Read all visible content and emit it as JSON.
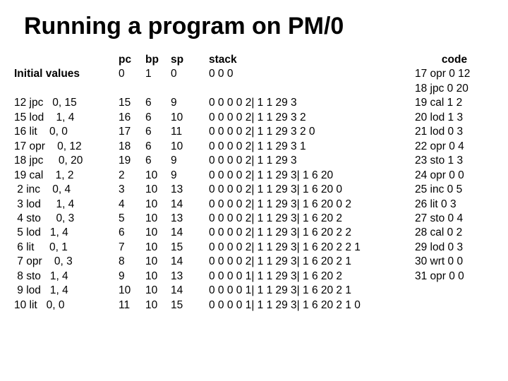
{
  "title": "Running a program on PM/0",
  "headers": {
    "initial": "Initial values",
    "pc": "pc",
    "bp": "bp",
    "sp": "sp",
    "stack": "stack",
    "code": "code"
  },
  "initial": {
    "pc": "0",
    "bp": "1",
    "sp": "0",
    "stack": "0 0 0"
  },
  "trace": [
    {
      "instr": "12 jpc   0, 15",
      "pc": "15",
      "bp": "6",
      "sp": "9",
      "stack": "0 0 0 0 2| 1 1 29 3"
    },
    {
      "instr": "15 lod    1, 4",
      "pc": "16",
      "bp": "6",
      "sp": "10",
      "stack": "0 0 0 0 2| 1 1 29 3 2"
    },
    {
      "instr": "16 lit    0, 0",
      "pc": "17",
      "bp": "6",
      "sp": "11",
      "stack": "0 0 0 0 2| 1 1 29 3 2 0"
    },
    {
      "instr": "17 opr    0, 12",
      "pc": "18",
      "bp": "6",
      "sp": "10",
      "stack": "0 0 0 0 2| 1 1 29 3 1"
    },
    {
      "instr": "18 jpc     0, 20",
      "pc": "19",
      "bp": "6",
      "sp": "9",
      "stack": "0 0 0 0 2| 1 1 29 3"
    },
    {
      "instr": "19 cal    1, 2",
      "pc": "2",
      "bp": "10",
      "sp": "9",
      "stack": "0 0 0 0 2| 1 1 29 3| 1 6 20"
    },
    {
      "instr": " 2 inc    0, 4",
      "pc": "3",
      "bp": "10",
      "sp": "13",
      "stack": "0 0 0 0 2| 1 1 29 3| 1 6 20 0"
    },
    {
      "instr": " 3 lod     1, 4",
      "pc": "4",
      "bp": "10",
      "sp": "14",
      "stack": "0 0 0 0 2| 1 1 29 3| 1 6 20 0 2"
    },
    {
      "instr": " 4 sto     0, 3",
      "pc": "5",
      "bp": "10",
      "sp": "13",
      "stack": "0 0 0 0 2| 1 1 29 3| 1 6 20 2"
    },
    {
      "instr": " 5 lod   1, 4",
      "pc": "6",
      "bp": "10",
      "sp": "14",
      "stack": "0 0 0 0 2| 1 1 29 3| 1 6 20 2 2"
    },
    {
      "instr": " 6 lit     0, 1",
      "pc": "7",
      "bp": "10",
      "sp": "15",
      "stack": "0 0 0 0 2| 1 1 29 3| 1 6 20 2 2 1"
    },
    {
      "instr": " 7 opr    0, 3",
      "pc": "8",
      "bp": "10",
      "sp": "14",
      "stack": "0 0 0 0 2| 1 1 29 3| 1 6 20 2 1"
    },
    {
      "instr": " 8 sto   1, 4",
      "pc": "9",
      "bp": "10",
      "sp": "13",
      "stack": "0 0 0 0 1| 1 1 29 3| 1 6 20 2"
    },
    {
      "instr": " 9 lod   1, 4",
      "pc": "10",
      "bp": "10",
      "sp": "14",
      "stack": "0 0 0 0 1| 1 1 29 3| 1 6 20 2 1"
    },
    {
      "instr": "10 lit   0, 0",
      "pc": "11",
      "bp": "10",
      "sp": "15",
      "stack": "0 0 0 0 1| 1 1 29 3| 1 6 20 2 1 0"
    }
  ],
  "code": [
    "17 opr  0 12",
    "18 jpc  0 20",
    "19 cal 1 2",
    "20 lod 1 3",
    "21 lod 0 3",
    "22 opr 0 4",
    "23 sto 1 3",
    "24 opr 0 0",
    "25 inc 0 5",
    "26 lit 0 3",
    "27 sto 0 4",
    "28 cal 0 2",
    "29 lod 0 3",
    "30 wrt 0 0",
    "31 opr 0 0"
  ]
}
